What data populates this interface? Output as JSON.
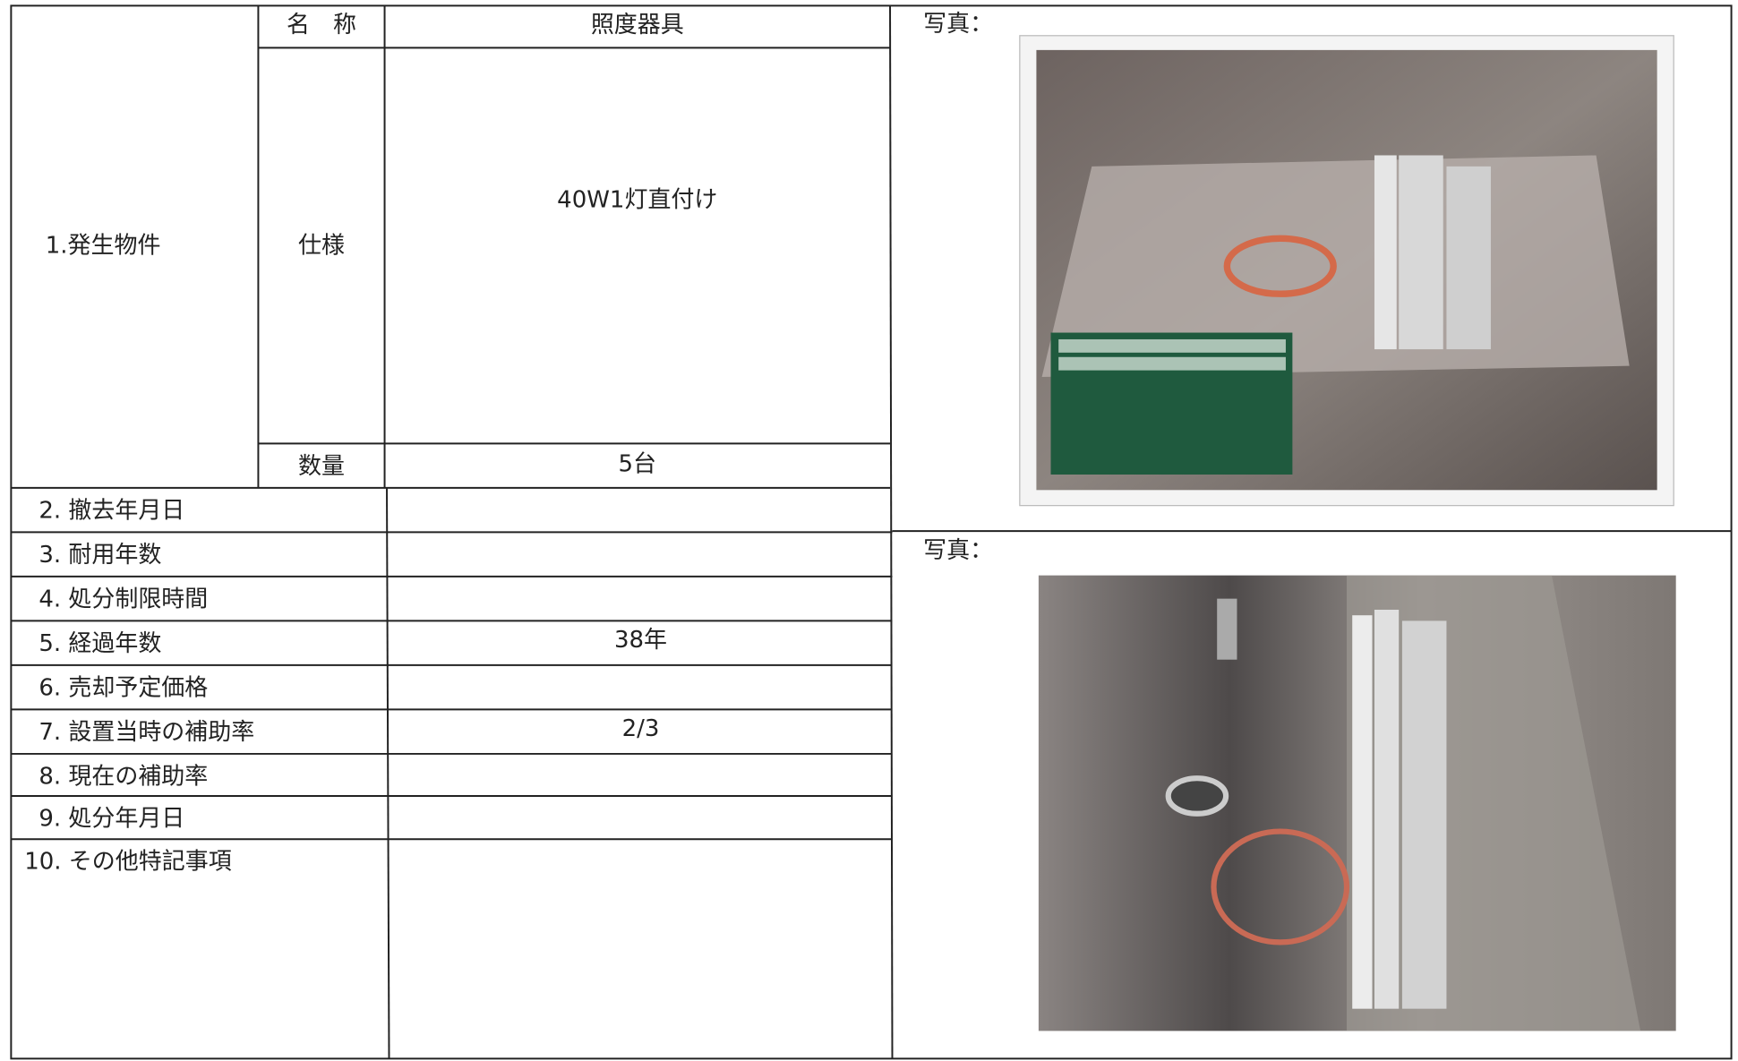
{
  "item": {
    "label": "1.発生物件",
    "name_label": "名　称",
    "name": "照度器具",
    "spec_label": "仕様",
    "spec": "40W1灯直付け",
    "quantity_label": "数量",
    "quantity": "5台"
  },
  "rows": [
    {
      "label": "2. 撤去年月日"
    },
    {
      "label": "3. 耐用年数"
    },
    {
      "label": "4. 処分制限時間"
    },
    {
      "label": "5. 経過年数",
      "value": "38年"
    },
    {
      "label": "6. 売却予定価格"
    },
    {
      "label": "7. 設置当時の補助率",
      "value": "2/3"
    },
    {
      "label": "8. 現在の補助率"
    },
    {
      "label": "9. 処分年月日"
    },
    {
      "label": "10. その他特記事項"
    }
  ],
  "photos": [
    {
      "label": "写真："
    },
    {
      "label": "写真："
    }
  ]
}
